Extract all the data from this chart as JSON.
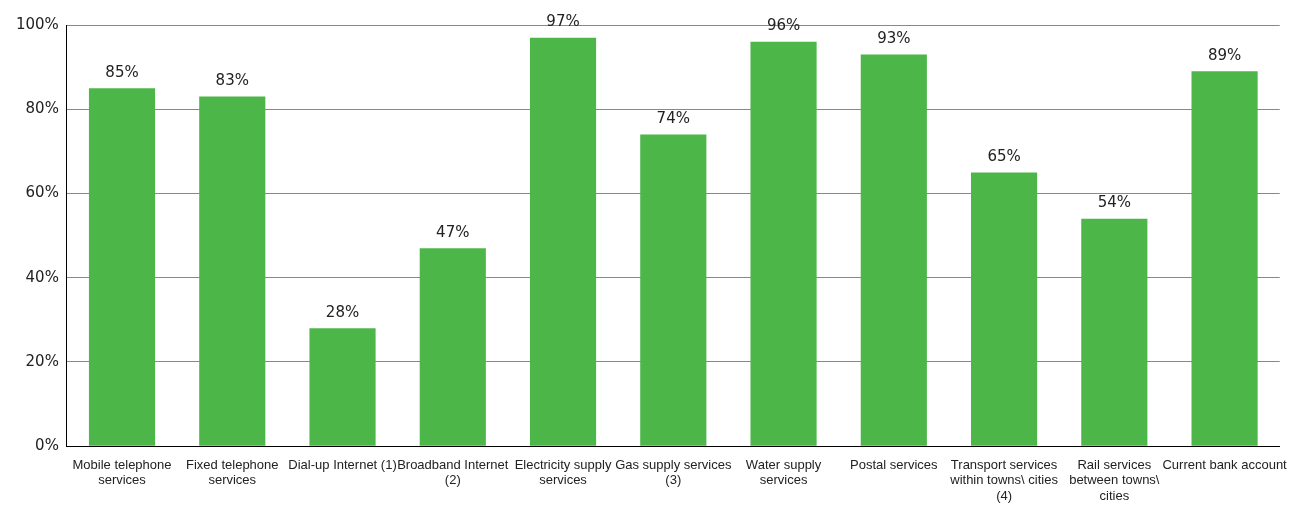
{
  "chart_data": {
    "type": "bar",
    "categories": [
      "Mobile telephone services",
      "Fixed telephone services",
      "Dial-up Internet (1)",
      "Broadband Internet (2)",
      "Electricity supply services",
      "Gas supply services (3)",
      "Water supply services",
      "Postal services",
      "Transport services within towns\\ cities (4)",
      "Rail services between towns\\ cities",
      "Current bank account"
    ],
    "values": [
      85,
      83,
      28,
      47,
      97,
      74,
      96,
      93,
      65,
      54,
      89
    ],
    "value_labels": [
      "85%",
      "83%",
      "28%",
      "47%",
      "97%",
      "74%",
      "96%",
      "93%",
      "65%",
      "54%",
      "89%"
    ],
    "color": "#4cb748",
    "ylim": [
      0,
      100
    ],
    "yticks": [
      {
        "value": 0,
        "label": "0%"
      },
      {
        "value": 20,
        "label": "20%"
      },
      {
        "value": 40,
        "label": "40%"
      },
      {
        "value": 60,
        "label": "60%"
      },
      {
        "value": 80,
        "label": "80%"
      },
      {
        "value": 100,
        "label": "100%"
      }
    ],
    "grid": "y",
    "legend": false
  }
}
